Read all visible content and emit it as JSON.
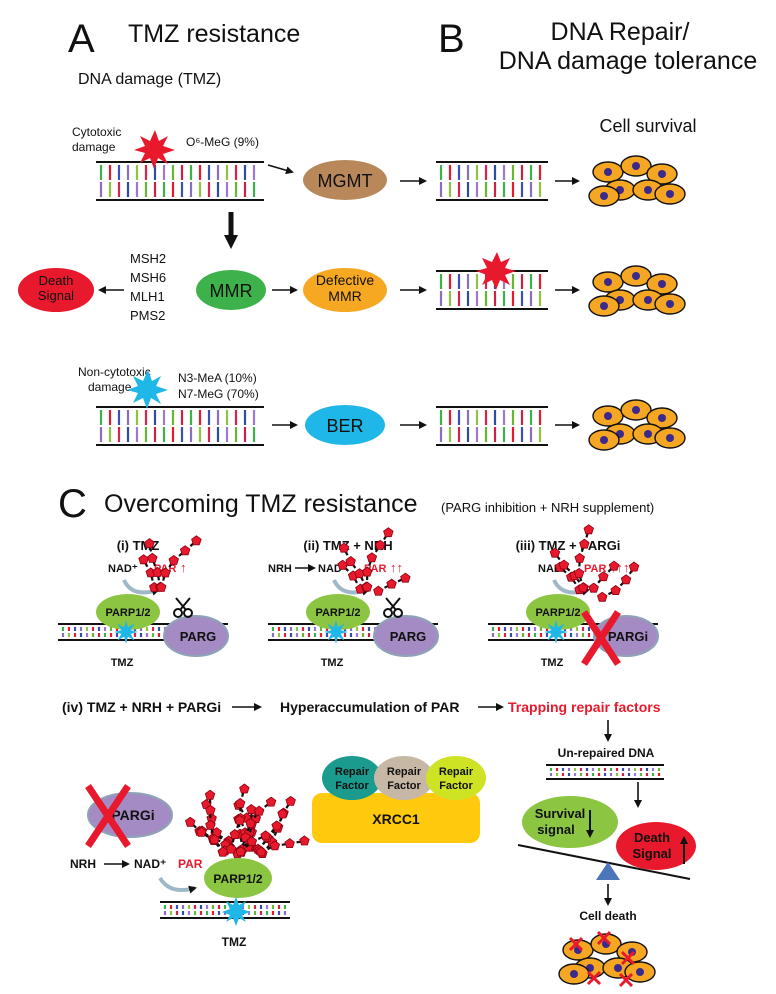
{
  "panel_a": {
    "letter": "A",
    "title": "TMZ resistance",
    "subtitle": "DNA damage (TMZ)",
    "cytotoxic_label_1": "Cytotoxic",
    "cytotoxic_label_2": "damage",
    "o6_meg": "O⁶-MeG (9%)",
    "mgmt": "MGMT",
    "mmr_proteins": [
      "MSH2",
      "MSH6",
      "MLH1",
      "PMS2"
    ],
    "mmr": "MMR",
    "defective_mmr_1": "Defective",
    "defective_mmr_2": "MMR",
    "death_signal_1": "Death",
    "death_signal_2": "Signal",
    "noncytotoxic_label_1": "Non-cytotoxic",
    "noncytotoxic_label_2": "damage",
    "n3_mea": "N3-MeA (10%)",
    "n7_meg": "N7-MeG (70%)",
    "ber": "BER"
  },
  "panel_b": {
    "letter": "B",
    "title_1": "DNA Repair/",
    "title_2": "DNA damage tolerance",
    "cell_survival": "Cell survival"
  },
  "panel_c": {
    "letter": "C",
    "title": "Overcoming TMZ resistance",
    "subtitle": "(PARG inhibition + NRH supplement)",
    "conditions": [
      {
        "label": "(i) TMZ",
        "par": "PAR",
        "arrows": "↑",
        "parg": "PARG"
      },
      {
        "label": "(ii) TMZ + NRH",
        "par": "PAR",
        "arrows": "↑↑",
        "parg": "PARG"
      },
      {
        "label": "(iii) TMZ + PARGi",
        "par": "PAR",
        "arrows": "↑↑↑↑",
        "parg": "PARGi"
      }
    ],
    "nad": "NAD⁺",
    "nrh": "NRH",
    "parp": "PARP1/2",
    "tmz": "TMZ",
    "iv_label": "(iv) TMZ + NRH + PARGi",
    "hyperaccumulation": "Hyperaccumulation of PAR",
    "trapping": "Trapping repair factors",
    "repair_factor_1": "Repair",
    "repair_factor_2": "Factor",
    "xrcc1": "XRCC1",
    "parg_i": "PARGi",
    "par": "PAR",
    "unrepaired": "Un-repaired DNA",
    "survival_1": "Survival",
    "survival_2": "signal",
    "death_1": "Death",
    "death_2": "Signal",
    "cell_death": "Cell death"
  },
  "colors": {
    "mgmt": "#b8875a",
    "mmr": "#3db24a",
    "defective_mmr": "#f7a823",
    "death": "#e8192c",
    "ber": "#1fb6e8",
    "parp": "#8bc541",
    "parg": "#a48bc4",
    "xrcc1": "#ffc90e",
    "cell": "#f5a623",
    "nucleus": "#3b2a8c"
  }
}
